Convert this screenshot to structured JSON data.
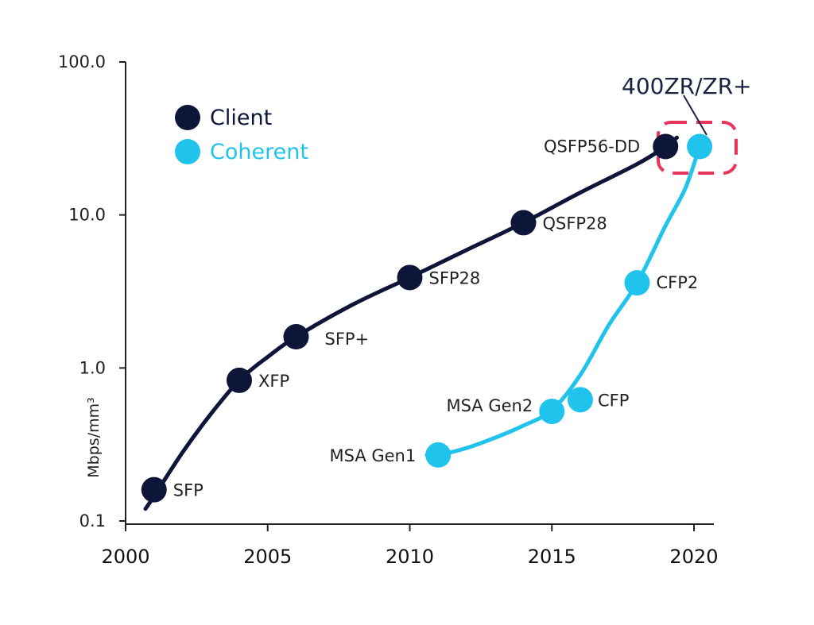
{
  "chart_data": {
    "type": "line",
    "title": "",
    "xlabel": "",
    "ylabel": "Mbps/mm³",
    "yscale": "log",
    "xlim": [
      2000,
      2020.7
    ],
    "ylim": [
      0.1,
      100.0
    ],
    "x_ticks": [
      2000,
      2005,
      2010,
      2015,
      2020
    ],
    "x_tick_labels": [
      "2000",
      "2005",
      "2010",
      "2015",
      "2020"
    ],
    "y_ticks": [
      0.1,
      1.0,
      10.0,
      100.0
    ],
    "y_tick_labels": [
      "0.1",
      "1.0",
      "10.0",
      "100.0"
    ],
    "legend_position": "top-left",
    "series": [
      {
        "name": "Client",
        "color": "#0d1638",
        "points": [
          {
            "label": "SFP",
            "x": 2001,
            "y": 0.16
          },
          {
            "label": "XFP",
            "x": 2004,
            "y": 0.83
          },
          {
            "label": "SFP+",
            "x": 2006,
            "y": 1.6
          },
          {
            "label": "SFP28",
            "x": 2010,
            "y": 3.9
          },
          {
            "label": "QSFP28",
            "x": 2014,
            "y": 8.9
          },
          {
            "label": "QSFP56-DD",
            "x": 2019,
            "y": 28
          }
        ],
        "curve": [
          [
            2000.7,
            0.12
          ],
          [
            2001,
            0.145
          ],
          [
            2002,
            0.28
          ],
          [
            2003,
            0.5
          ],
          [
            2004,
            0.83
          ],
          [
            2005,
            1.18
          ],
          [
            2006,
            1.6
          ],
          [
            2008,
            2.6
          ],
          [
            2010,
            3.9
          ],
          [
            2012,
            5.9
          ],
          [
            2014,
            8.9
          ],
          [
            2016,
            14
          ],
          [
            2018,
            21.5
          ],
          [
            2019,
            28
          ],
          [
            2019.4,
            32
          ]
        ]
      },
      {
        "name": "Coherent",
        "color": "#1fc3ec",
        "points": [
          {
            "label": "MSA Gen1",
            "x": 2011,
            "y": 0.27
          },
          {
            "label": "MSA Gen2",
            "x": 2015,
            "y": 0.52
          },
          {
            "label": "CFP",
            "x": 2016,
            "y": 0.62
          },
          {
            "label": "CFP2",
            "x": 2018,
            "y": 3.6
          },
          {
            "label": "400ZR/ZR+",
            "x": 2020.2,
            "y": 28
          }
        ],
        "curve": [
          [
            2010.6,
            0.27
          ],
          [
            2011,
            0.27
          ],
          [
            2012,
            0.3
          ],
          [
            2013,
            0.35
          ],
          [
            2014,
            0.42
          ],
          [
            2015,
            0.53
          ],
          [
            2016,
            0.9
          ],
          [
            2017,
            1.9
          ],
          [
            2018,
            3.6
          ],
          [
            2019,
            8.5
          ],
          [
            2019.7,
            15
          ],
          [
            2020.2,
            28
          ]
        ]
      }
    ],
    "legend": [
      {
        "name": "Client",
        "color": "#0d1638"
      },
      {
        "name": "Coherent",
        "color": "#1fc3ec"
      }
    ],
    "annotation": {
      "text": "400ZR/ZR+",
      "color": "#e8365a"
    }
  }
}
